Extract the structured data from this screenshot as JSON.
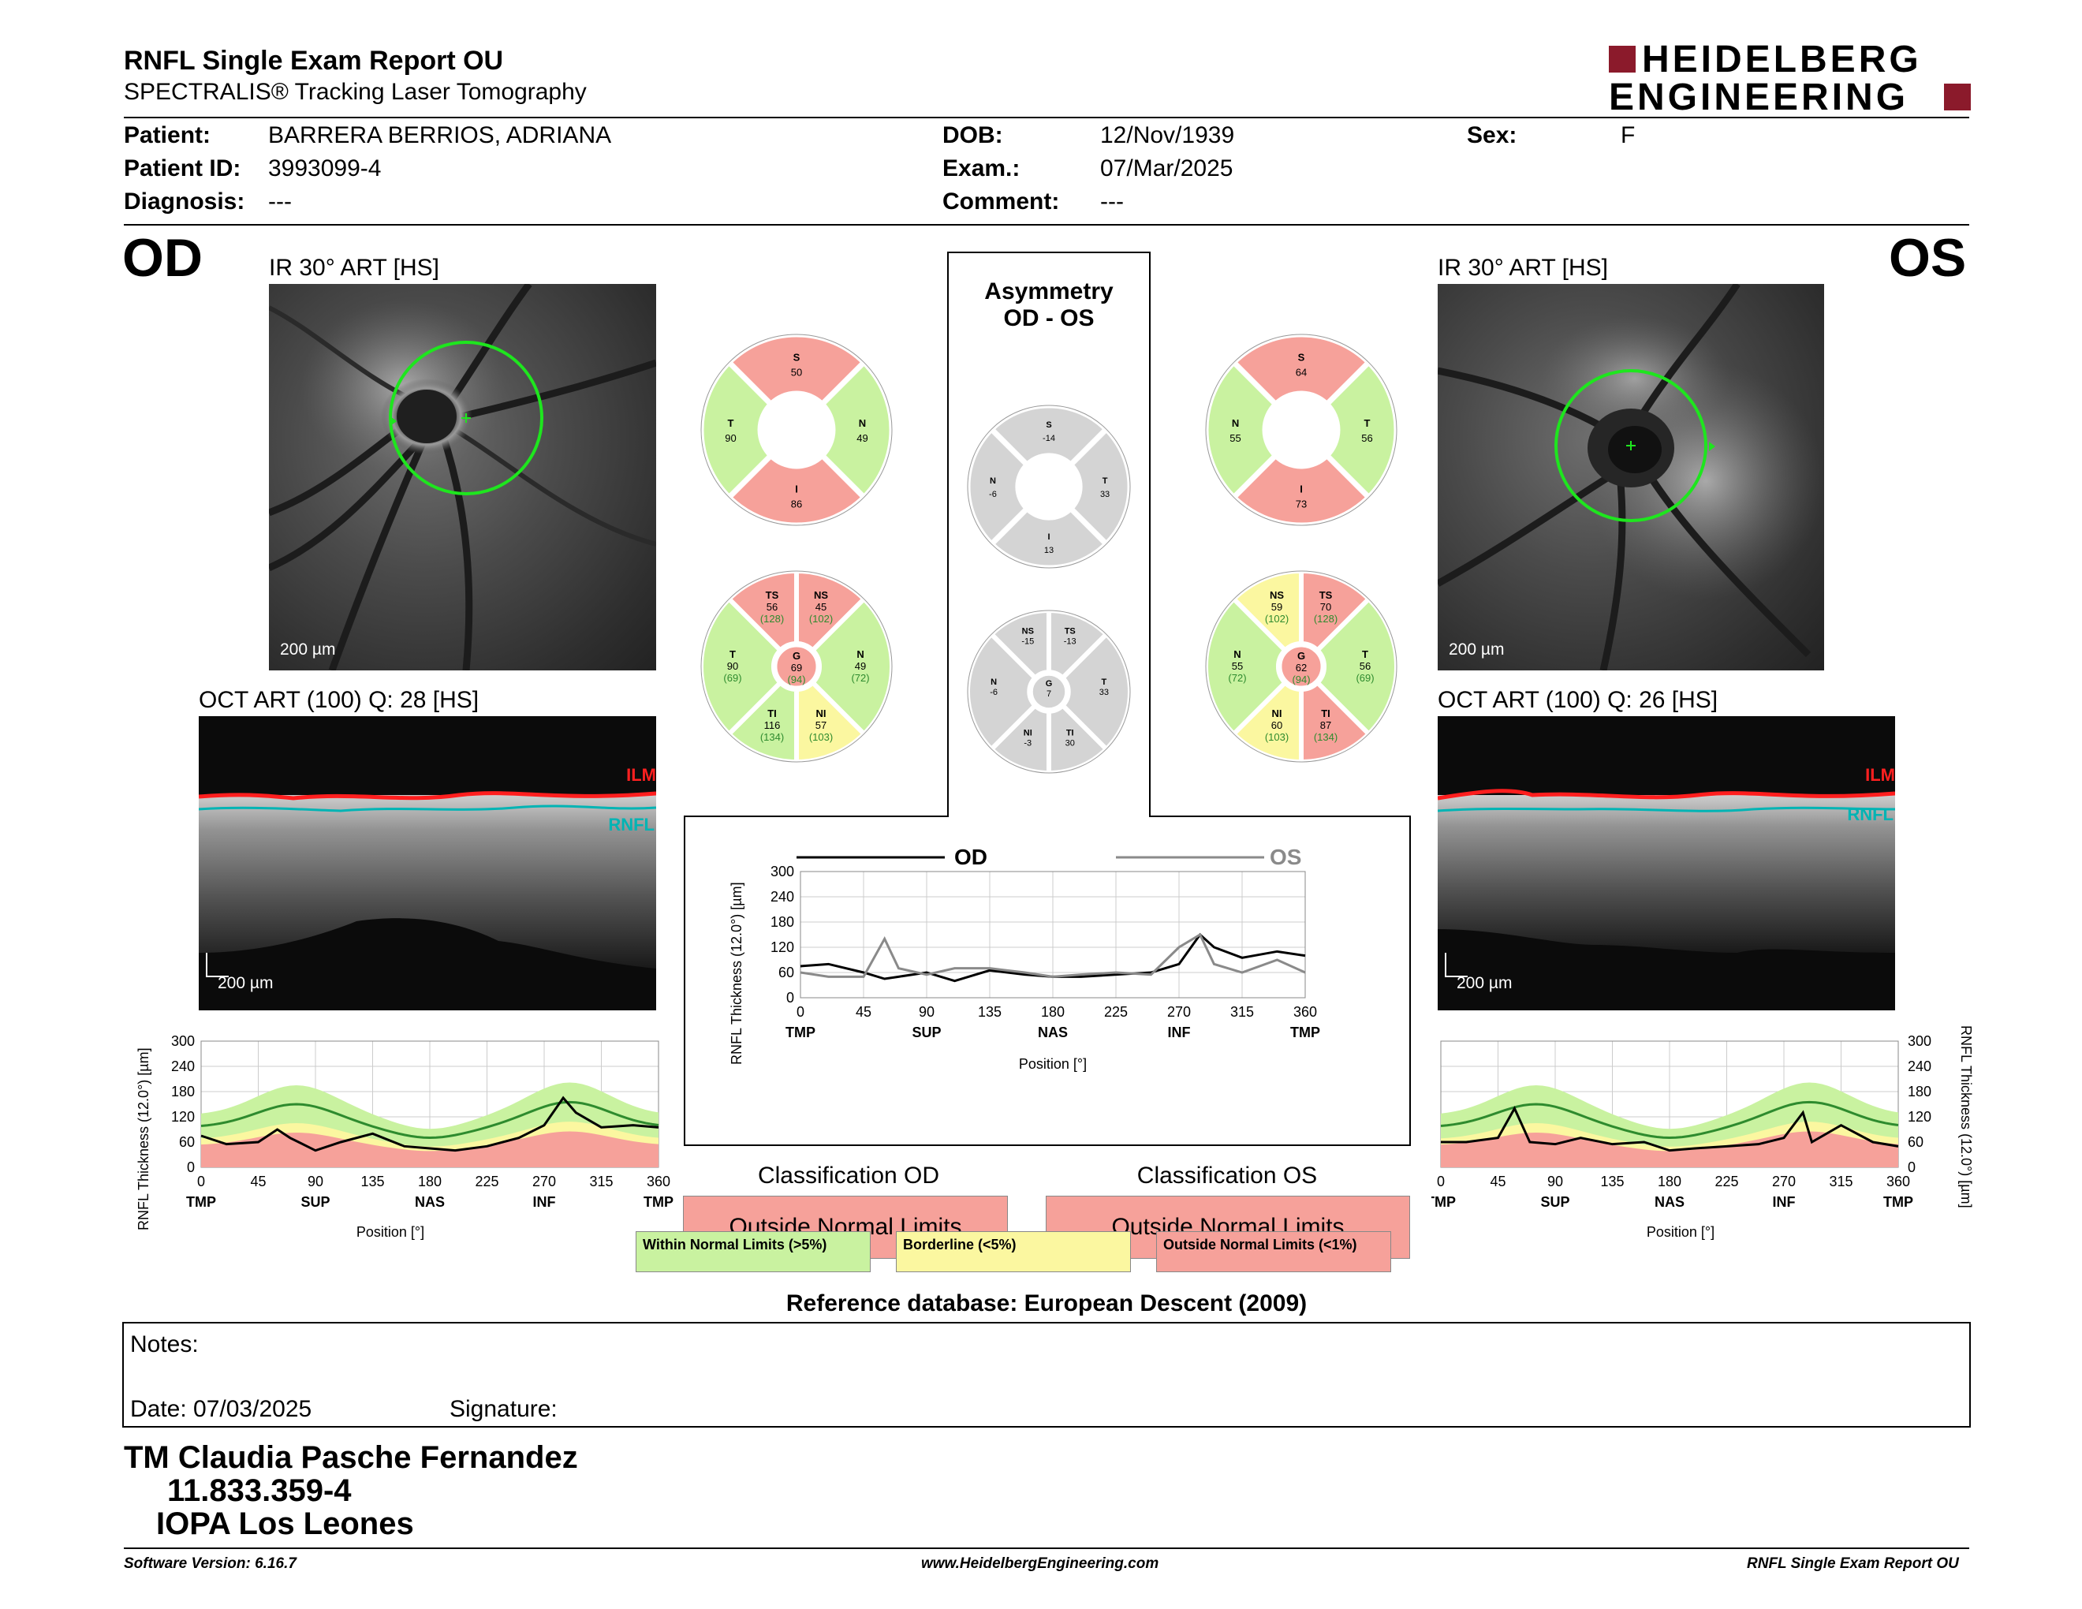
{
  "header": {
    "title": "RNFL Single Exam Report OU",
    "subtitle": "SPECTRALIS® Tracking Laser Tomography",
    "brand_line1": "HEIDELBERG",
    "brand_line2": "ENGINEERING",
    "brand_color": "#8b1a2b"
  },
  "patient": {
    "patient_label": "Patient:",
    "patient_value": "BARRERA BERRIOS, ADRIANA",
    "id_label": "Patient ID:",
    "id_value": "3993099-4",
    "diag_label": "Diagnosis:",
    "diag_value": "---",
    "dob_label": "DOB:",
    "dob_value": "12/Nov/1939",
    "exam_label": "Exam.:",
    "exam_value": "07/Mar/2025",
    "comment_label": "Comment:",
    "comment_value": "---",
    "sex_label": "Sex:",
    "sex_value": "F"
  },
  "od": {
    "eye": "OD",
    "ir_caption": "IR 30° ART [HS]",
    "ir_scale": "200 µm",
    "oct_caption": "OCT ART (100) Q: 28 [HS]",
    "oct_scale": "200 µm",
    "ilm": "ILM",
    "rnfl": "RNFL"
  },
  "os": {
    "eye": "OS",
    "ir_caption": "IR 30° ART [HS]",
    "ir_scale": "200 µm",
    "oct_caption": "OCT ART (100) Q: 26 [HS]",
    "oct_scale": "200 µm",
    "ilm": "ILM",
    "rnfl": "RNFL"
  },
  "asymmetry": {
    "title1": "Asymmetry",
    "title2": "OD - OS"
  },
  "colors": {
    "green": "#c9f2a0",
    "red": "#f6a19a",
    "yellow": "#fbf7a0",
    "gray": "#d4d4d4",
    "normal_green": "#2e8b2e"
  },
  "sectors": {
    "od_quad": {
      "S": "50",
      "N": "49",
      "I": "86",
      "T": "90"
    },
    "os_quad": {
      "S": "64",
      "N": "55",
      "I": "73",
      "T": "56"
    },
    "asym_quad": {
      "S": "-14",
      "N": "-6",
      "I": "13",
      "T": "33"
    },
    "od_six": {
      "TS": [
        "56",
        "(128)"
      ],
      "NS": [
        "45",
        "(102)"
      ],
      "T": [
        "90",
        "(69)"
      ],
      "N": [
        "49",
        "(72)"
      ],
      "TI": [
        "116",
        "(134)"
      ],
      "NI": [
        "57",
        "(103)"
      ],
      "G": [
        "69",
        "(94)"
      ]
    },
    "os_six": {
      "NS": [
        "59",
        "(102)"
      ],
      "TS": [
        "70",
        "(128)"
      ],
      "N": [
        "55",
        "(72)"
      ],
      "T": [
        "56",
        "(69)"
      ],
      "NI": [
        "60",
        "(103)"
      ],
      "TI": [
        "87",
        "(134)"
      ],
      "G": [
        "62",
        "(94)"
      ]
    },
    "asym_six": {
      "NS": "-15",
      "TS": "-13",
      "N": "-6",
      "T": "33",
      "NI": "-3",
      "TI": "30",
      "G": "7"
    }
  },
  "charts": {
    "ylabel": "RNFL Thickness (12.0°) [µm]",
    "xlabel": "Position [°]",
    "yticks": [
      "300",
      "240",
      "180",
      "120",
      "60",
      "0"
    ],
    "xticks": [
      "0",
      "45",
      "90",
      "135",
      "180",
      "225",
      "270",
      "315",
      "360"
    ],
    "sector_labels": [
      "TMP",
      "SUP",
      "NAS",
      "INF",
      "TMP"
    ],
    "center_yticks": [
      "300",
      "240",
      "180",
      "120",
      "60",
      "0"
    ],
    "legend_od": "OD",
    "legend_os": "OS"
  },
  "chart_data": [
    {
      "type": "line",
      "title": "",
      "xlabel": "Position [°]",
      "ylabel": "RNFL Thickness (12.0°) [µm]",
      "xlim": [
        0,
        360
      ],
      "ylim": [
        0,
        300
      ],
      "x": [
        0,
        20,
        45,
        60,
        70,
        90,
        110,
        135,
        160,
        180,
        200,
        225,
        250,
        270,
        285,
        295,
        315,
        340,
        360
      ],
      "series": [
        {
          "name": "OD",
          "values": [
            75,
            55,
            60,
            90,
            70,
            40,
            60,
            80,
            50,
            45,
            40,
            50,
            70,
            100,
            165,
            130,
            95,
            100,
            95
          ]
        }
      ]
    },
    {
      "type": "line",
      "title": "",
      "xlabel": "Position [°]",
      "ylabel": "RNFL Thickness (12.0°) [µm]",
      "xlim": [
        0,
        360
      ],
      "ylim": [
        0,
        300
      ],
      "x": [
        0,
        20,
        45,
        60,
        70,
        90,
        110,
        135,
        160,
        180,
        200,
        225,
        250,
        270,
        285,
        295,
        315,
        340,
        360
      ],
      "series": [
        {
          "name": "OD",
          "values": [
            75,
            80,
            60,
            45,
            50,
            60,
            40,
            65,
            55,
            50,
            50,
            55,
            60,
            80,
            150,
            120,
            95,
            110,
            100
          ]
        },
        {
          "name": "OS",
          "values": [
            60,
            50,
            50,
            140,
            70,
            55,
            70,
            70,
            60,
            50,
            55,
            60,
            55,
            120,
            150,
            80,
            60,
            90,
            60
          ]
        }
      ]
    },
    {
      "type": "line",
      "title": "",
      "xlabel": "Position [°]",
      "ylabel": "RNFL Thickness (12.0°) [µm]",
      "xlim": [
        0,
        360
      ],
      "ylim": [
        0,
        300
      ],
      "x": [
        0,
        20,
        45,
        58,
        70,
        90,
        110,
        135,
        160,
        180,
        200,
        225,
        250,
        270,
        285,
        292,
        315,
        340,
        360
      ],
      "series": [
        {
          "name": "OS",
          "values": [
            60,
            60,
            70,
            140,
            60,
            55,
            70,
            55,
            60,
            40,
            45,
            50,
            55,
            70,
            130,
            60,
            100,
            60,
            50
          ]
        }
      ]
    }
  ],
  "classification": {
    "od_title": "Classification OD",
    "od_value": "Outside Normal Limits",
    "os_title": "Classification OS",
    "os_value": "Outside Normal Limits"
  },
  "legend": {
    "within": "Within Normal Limits (>5%)",
    "borderline": "Borderline (<5%)",
    "outside": "Outside Normal Limits (<1%)"
  },
  "reference": "Reference database: European Descent (2009)",
  "notes": {
    "label": "Notes:",
    "date_label": "Date: 07/03/2025",
    "signature_label": "Signature:"
  },
  "signature": {
    "name": "TM Claudia Pasche Fernandez",
    "id": "11.833.359-4",
    "place": "IOPA Los Leones"
  },
  "footer": {
    "version": "Software Version: 6.16.7",
    "url": "www.HeidelbergEngineering.com",
    "report": "RNFL Single Exam Report OU"
  }
}
